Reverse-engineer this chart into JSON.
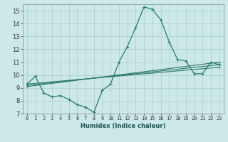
{
  "xlabel": "Humidex (Indice chaleur)",
  "bg_color": "#cce8e8",
  "grid_color": "#aacccc",
  "line_color": "#2a7a6a",
  "xlim": [
    -0.5,
    23.5
  ],
  "ylim": [
    7,
    15.5
  ],
  "xticks": [
    0,
    1,
    2,
    3,
    4,
    5,
    6,
    7,
    8,
    9,
    10,
    11,
    12,
    13,
    14,
    15,
    16,
    17,
    18,
    19,
    20,
    21,
    22,
    23
  ],
  "yticks": [
    7,
    8,
    9,
    10,
    11,
    12,
    13,
    14,
    15
  ],
  "lines": [
    {
      "x": [
        0,
        1,
        2,
        3,
        4,
        5,
        6,
        7,
        8,
        9,
        10,
        11,
        12,
        13,
        14,
        15,
        16,
        17,
        18,
        19,
        20,
        21,
        22,
        23
      ],
      "y": [
        9.3,
        9.9,
        8.6,
        8.3,
        8.4,
        8.1,
        7.7,
        7.5,
        7.1,
        8.8,
        9.3,
        11.0,
        12.2,
        13.7,
        15.3,
        15.1,
        14.3,
        12.6,
        11.2,
        11.1,
        10.1,
        10.1,
        11.0,
        10.8
      ],
      "lw": 0.9,
      "ms": 2.5
    },
    {
      "x": [
        0,
        23
      ],
      "y": [
        9.3,
        10.6
      ],
      "lw": 0.8,
      "ms": 1.5
    },
    {
      "x": [
        0,
        23
      ],
      "y": [
        9.2,
        10.8
      ],
      "lw": 0.8,
      "ms": 1.5
    },
    {
      "x": [
        0,
        23
      ],
      "y": [
        9.1,
        11.0
      ],
      "lw": 0.8,
      "ms": 1.5
    }
  ]
}
